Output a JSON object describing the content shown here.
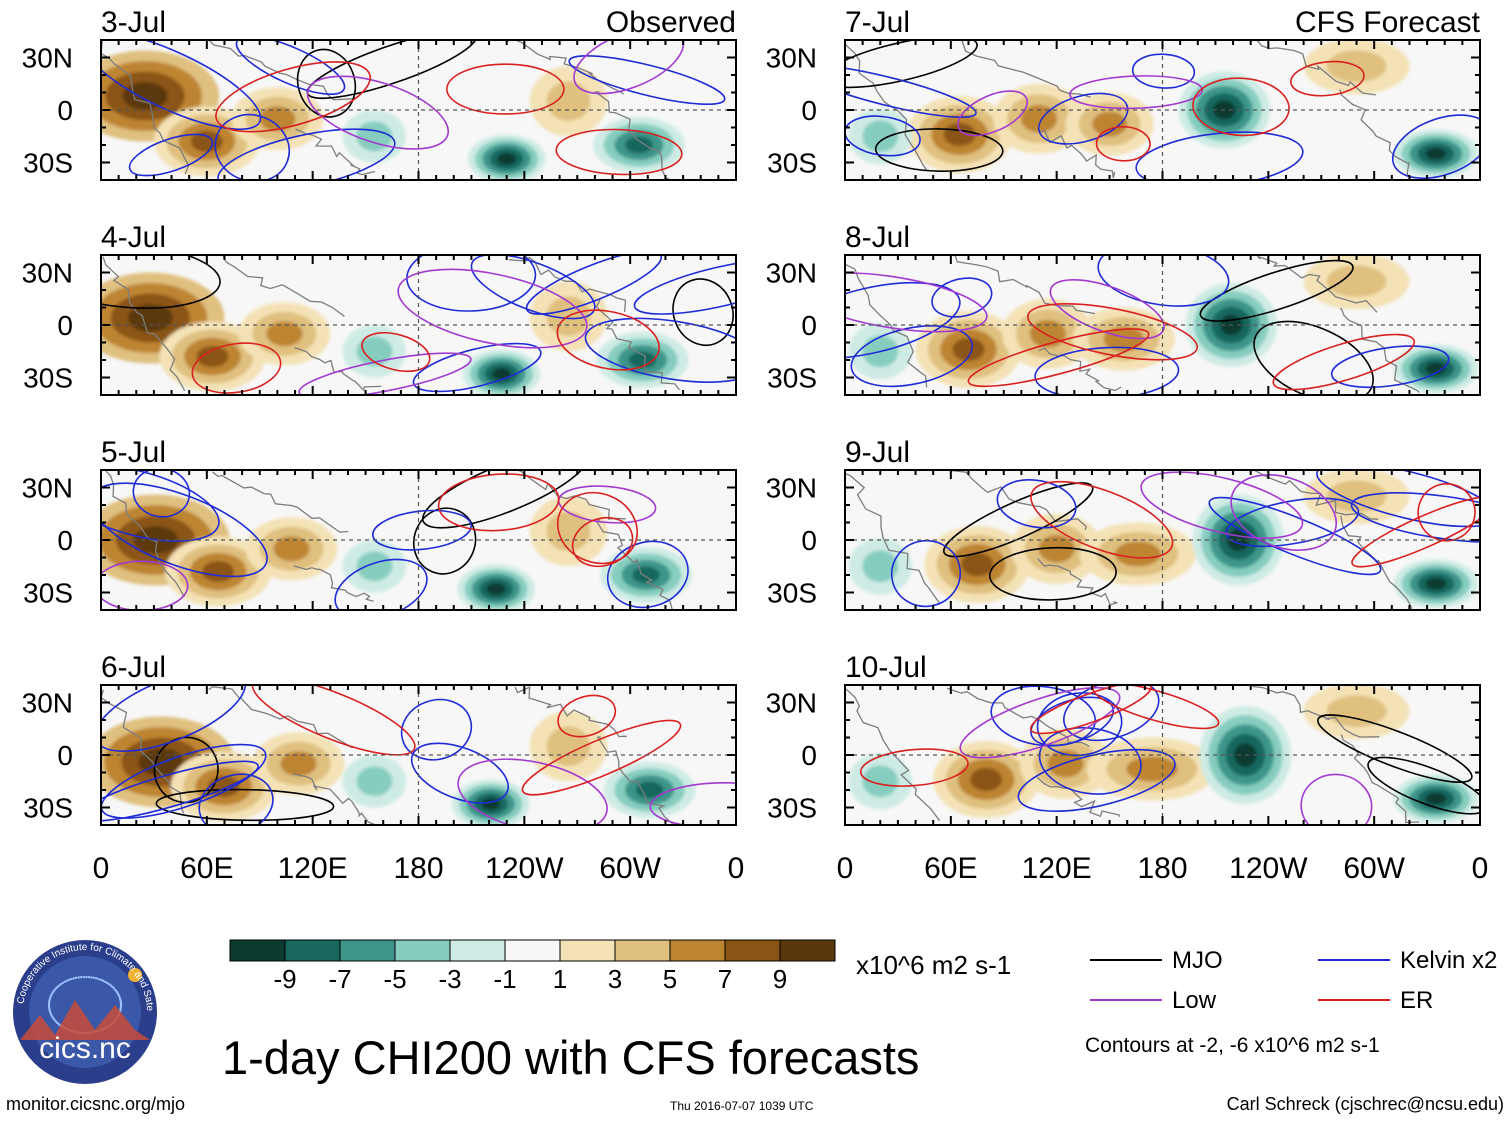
{
  "chart_data": {
    "type": "heatmap",
    "title": "1-day CHI200 with CFS forecasts",
    "units": "x10^6 m2 s-1",
    "x_ticks": [
      "0",
      "60E",
      "120E",
      "180",
      "120W",
      "60W",
      "0"
    ],
    "y_ticks": [
      "30N",
      "0",
      "30S"
    ],
    "x_range": [
      0,
      360
    ],
    "y_range": [
      -40,
      40
    ],
    "columns": [
      {
        "header": "Observed",
        "panels": [
          "3-Jul",
          "4-Jul",
          "5-Jul",
          "6-Jul"
        ]
      },
      {
        "header": "CFS Forecast",
        "panels": [
          "7-Jul",
          "8-Jul",
          "9-Jul",
          "10-Jul"
        ]
      }
    ],
    "colorbar": {
      "labels": [
        "-9",
        "-7",
        "-5",
        "-3",
        "-1",
        "1",
        "3",
        "5",
        "7",
        "9"
      ],
      "colors": [
        "#0c3b30",
        "#18685e",
        "#3e958a",
        "#86cdbf",
        "#cdebe4",
        "#f7f7f7",
        "#f4e2b6",
        "#dfc07f",
        "#bd8431",
        "#8a5415",
        "#5b370c"
      ]
    },
    "legend": [
      {
        "name": "MJO",
        "color": "#000000"
      },
      {
        "name": "Kelvin x2",
        "color": "#1f2bd6"
      },
      {
        "name": "Low",
        "color": "#a23ad0"
      },
      {
        "name": "ER",
        "color": "#d92020"
      }
    ],
    "contour_note": "Contours at -2, -6 x10^6 m2 s-1"
  },
  "footer": {
    "logo_text": "cics.nc",
    "logo_ring_text": "Cooperative Institute for Climate and Satellites",
    "url": "monitor.cicsnc.org/mjo",
    "timestamp": "Thu 2016-07-07 1039 UTC",
    "author": "Carl Schreck (cjschrec@ncsu.edu)"
  },
  "colors": {
    "land": "#7d7d7d",
    "axis": "#000000"
  }
}
